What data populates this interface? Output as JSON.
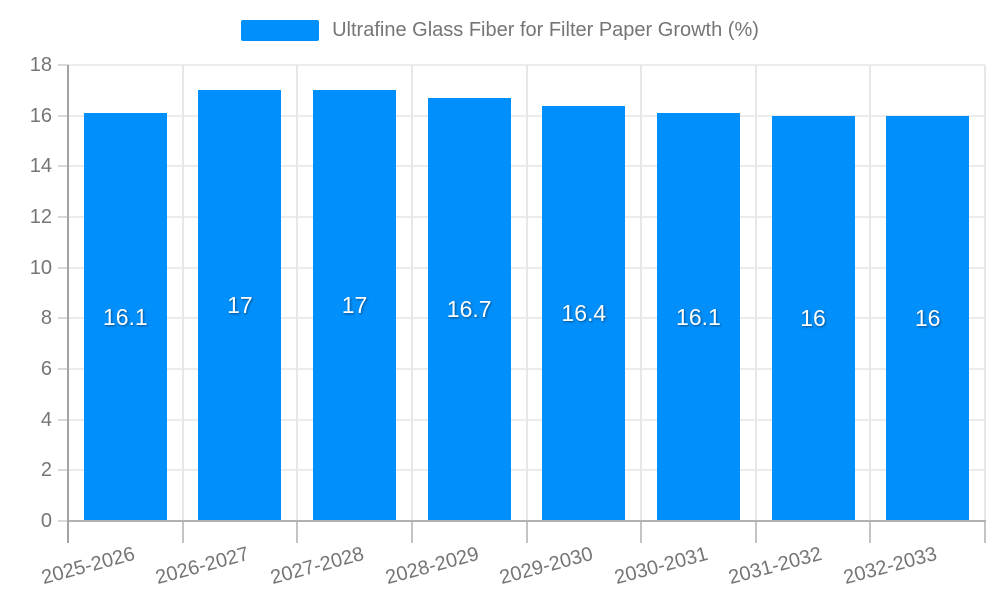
{
  "chart_data": {
    "type": "bar",
    "title": "Ultrafine Glass Fiber for Filter Paper Growth (%)",
    "legend_entries": [
      "Ultrafine Glass Fiber for Filter Paper Growth (%)"
    ],
    "legend_position": "top",
    "categories": [
      "2025-2026",
      "2026-2027",
      "2027-2028",
      "2028-2029",
      "2029-2030",
      "2030-2031",
      "2031-2032",
      "2032-2033"
    ],
    "values": [
      16.1,
      17,
      17,
      16.7,
      16.4,
      16.1,
      16,
      16
    ],
    "value_labels": [
      "16.1",
      "17",
      "17",
      "16.7",
      "16.4",
      "16.1",
      "16",
      "16"
    ],
    "yticks": [
      "0",
      "2",
      "4",
      "6",
      "8",
      "10",
      "12",
      "14",
      "16",
      "18"
    ],
    "ylim": [
      0,
      18
    ],
    "xlabel": "",
    "ylabel": "",
    "grid": true,
    "colors": {
      "bar": "#008FFB",
      "bar_label_text": "#ffffff",
      "axis_label_text": "#757575",
      "legend_text": "#757575",
      "gridline": "#ececec",
      "y_axis_line": "#a3a3a3",
      "x_axis_line": "#b1b1b1"
    }
  }
}
